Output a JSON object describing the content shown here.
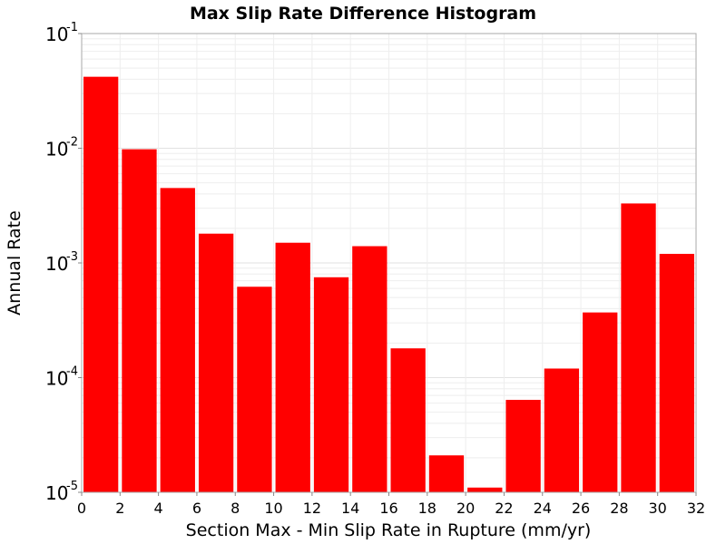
{
  "chart_data": {
    "type": "bar",
    "title": "Max Slip Rate Difference Histogram",
    "xlabel": "Section Max - Min Slip Rate in Rupture (mm/yr)",
    "ylabel": "Annual Rate",
    "y_scale": "log",
    "xlim": [
      0,
      32
    ],
    "ylim": [
      1e-05,
      0.1
    ],
    "bin_width": 2,
    "grid": true,
    "bar_color": "#ff0000",
    "x_ticks": [
      "0",
      "2",
      "4",
      "6",
      "8",
      "10",
      "12",
      "14",
      "16",
      "18",
      "20",
      "22",
      "24",
      "26",
      "28",
      "30",
      "32"
    ],
    "y_ticks": [
      {
        "base": "10",
        "exp": "-5",
        "value": 1e-05
      },
      {
        "base": "10",
        "exp": "-4",
        "value": 0.0001
      },
      {
        "base": "10",
        "exp": "-3",
        "value": 0.001
      },
      {
        "base": "10",
        "exp": "-2",
        "value": 0.01
      },
      {
        "base": "10",
        "exp": "-1",
        "value": 0.1
      }
    ],
    "bins": [
      {
        "x": 1,
        "value": 0.042
      },
      {
        "x": 3,
        "value": 0.0098
      },
      {
        "x": 5,
        "value": 0.0045
      },
      {
        "x": 7,
        "value": 0.0018
      },
      {
        "x": 9,
        "value": 0.00062
      },
      {
        "x": 11,
        "value": 0.0015
      },
      {
        "x": 13,
        "value": 0.00075
      },
      {
        "x": 15,
        "value": 0.0014
      },
      {
        "x": 17,
        "value": 0.00018
      },
      {
        "x": 19,
        "value": 2.1e-05
      },
      {
        "x": 21,
        "value": 1.1e-05
      },
      {
        "x": 23,
        "value": 6.4e-05
      },
      {
        "x": 25,
        "value": 0.00012
      },
      {
        "x": 27,
        "value": 0.00037
      },
      {
        "x": 29,
        "value": 0.0033
      },
      {
        "x": 31,
        "value": 0.0012
      }
    ]
  }
}
